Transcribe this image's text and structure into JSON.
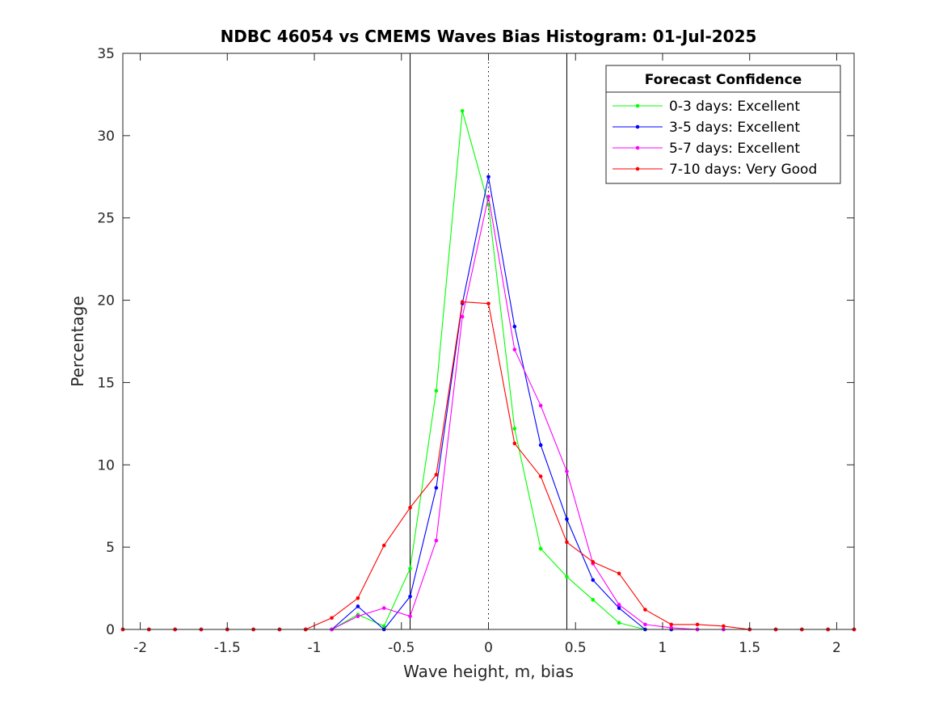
{
  "chart_data": {
    "type": "line",
    "title": "NDBC 46054 vs CMEMS Waves Bias Histogram: 01-Jul-2025",
    "xlabel": "Wave height, m, bias",
    "ylabel": "Percentage",
    "xlim": [
      -2.1,
      2.1
    ],
    "ylim": [
      0,
      35
    ],
    "xticks": [
      -2,
      -1.5,
      -1,
      -0.5,
      0,
      0.5,
      1,
      1.5,
      2
    ],
    "xtick_labels": [
      "-2",
      "-1.5",
      "-1",
      "-0.5",
      "0",
      "0.5",
      "1",
      "1.5",
      "2"
    ],
    "yticks": [
      0,
      5,
      10,
      15,
      20,
      25,
      30,
      35
    ],
    "ytick_labels": [
      "0",
      "5",
      "10",
      "15",
      "20",
      "25",
      "30",
      "35"
    ],
    "grid": false,
    "legend": {
      "title": "Forecast Confidence",
      "position": "top-right"
    },
    "reference_lines": [
      {
        "x": -0.45,
        "style": "solid"
      },
      {
        "x": 0,
        "style": "dotted"
      },
      {
        "x": 0.45,
        "style": "solid"
      }
    ],
    "x": [
      -2.1,
      -1.95,
      -1.8,
      -1.65,
      -1.5,
      -1.35,
      -1.2,
      -1.05,
      -0.9,
      -0.75,
      -0.6,
      -0.45,
      -0.3,
      -0.15,
      0,
      0.15,
      0.3,
      0.45,
      0.6,
      0.75,
      0.9,
      1.05,
      1.2,
      1.35,
      1.5,
      1.65,
      1.8,
      1.95,
      2.1
    ],
    "series": [
      {
        "name": "0-3 days: Excellent",
        "color": "#00ff00",
        "values": [
          0,
          0,
          0,
          0,
          0,
          0,
          0,
          0,
          0,
          0.9,
          0.2,
          3.7,
          14.5,
          31.5,
          25.8,
          12.2,
          4.9,
          3.2,
          1.8,
          0.4,
          0,
          0,
          0,
          0,
          0,
          0,
          0,
          0,
          0
        ]
      },
      {
        "name": "3-5 days: Excellent",
        "color": "#0000ff",
        "values": [
          0,
          0,
          0,
          0,
          0,
          0,
          0,
          0,
          0,
          1.4,
          0,
          2.0,
          8.6,
          19.8,
          27.5,
          18.4,
          11.2,
          6.7,
          3.0,
          1.3,
          0,
          0,
          0,
          0,
          0,
          0,
          0,
          0,
          0
        ]
      },
      {
        "name": "5-7 days: Excellent",
        "color": "#ff00ff",
        "values": [
          0,
          0,
          0,
          0,
          0,
          0,
          0,
          0,
          0,
          0.8,
          1.3,
          0.8,
          5.4,
          19.0,
          26.3,
          17.0,
          13.6,
          9.6,
          4.0,
          1.5,
          0.3,
          0.1,
          0,
          0,
          0,
          0,
          0,
          0,
          0
        ]
      },
      {
        "name": "7-10 days: Very Good",
        "color": "#ff0000",
        "values": [
          0,
          0,
          0,
          0,
          0,
          0,
          0,
          0,
          0.7,
          1.9,
          5.1,
          7.4,
          9.4,
          19.9,
          19.8,
          11.3,
          9.3,
          5.3,
          4.1,
          3.4,
          1.2,
          0.3,
          0.3,
          0.2,
          0,
          0,
          0,
          0,
          0
        ]
      }
    ]
  }
}
